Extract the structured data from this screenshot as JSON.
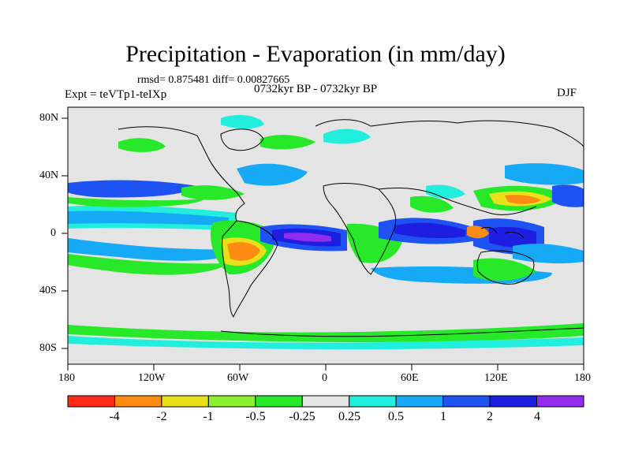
{
  "title": "Precipitation - Evaporation (in mm/day)",
  "stats": "rmsd= 0.875481 diff= 0.00827665",
  "experiment": "Expt = teVTp1-teIXp",
  "period": "0732kyr BP - 0732kyr BP",
  "season": "DJF",
  "lat_labels": [
    "80N",
    "40N",
    "0",
    "40S",
    "80S"
  ],
  "lon_labels": [
    "180",
    "120W",
    "60W",
    "0",
    "60E",
    "120E",
    "180"
  ],
  "colorbar": {
    "labels": [
      "-4",
      "-2",
      "-1",
      "-0.5",
      "-0.25",
      "0.25",
      "0.5",
      "1",
      "2",
      "4"
    ],
    "colors": [
      "#ff2a1a",
      "#ff8c12",
      "#e8e018",
      "#8cf02e",
      "#28e82a",
      "#e4e4e4",
      "#22eedd",
      "#16aaf6",
      "#1e52f2",
      "#1e1ee0",
      "#8f2cee"
    ]
  }
}
